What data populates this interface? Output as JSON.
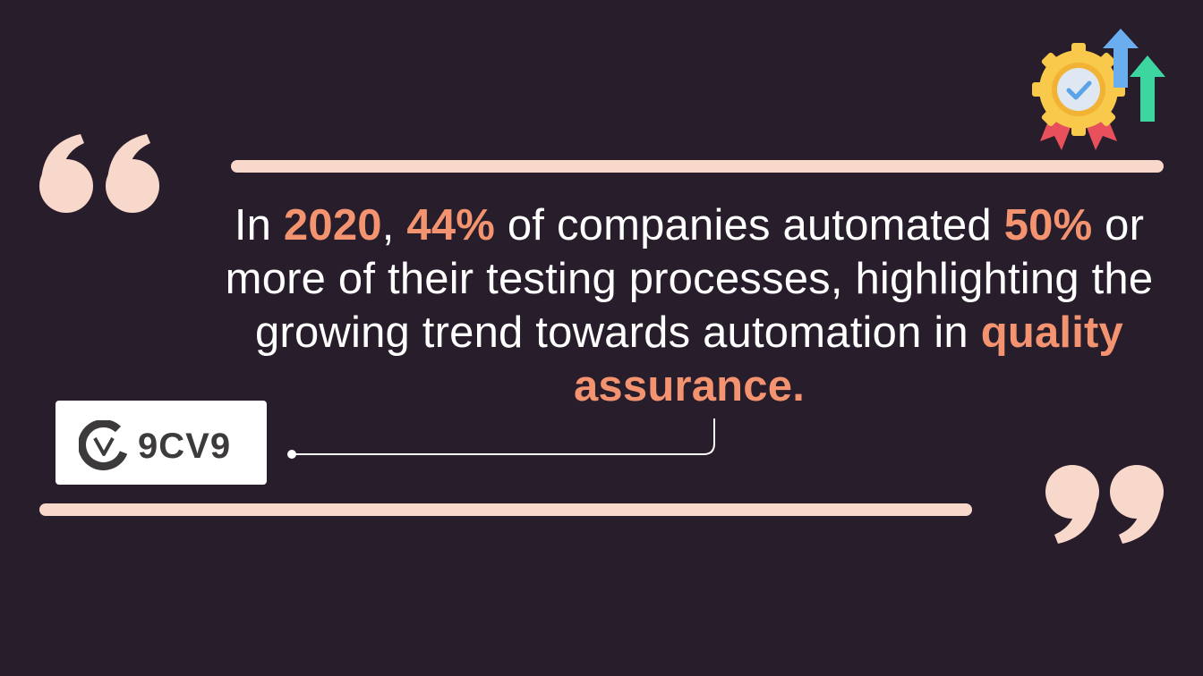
{
  "quote": {
    "part1": "In ",
    "hl_year": "2020",
    "part2": ", ",
    "hl_percent1": "44%",
    "part3": " of companies automated ",
    "hl_percent2": "50%",
    "part4": " or more of their testing processes, highlighting the growing trend towards automation in ",
    "hl_topic": "quality assurance."
  },
  "logo": {
    "mark_letter": "v",
    "text": "9CV9"
  },
  "icons": {
    "open_quote": "opening-quote-mark-icon",
    "close_quote": "closing-quote-mark-icon",
    "badge": "quality-badge-with-growth-arrows-icon"
  },
  "colors": {
    "background": "#281d2b",
    "accent": "#f49370",
    "quote_marks": "#f9d8cc",
    "text": "#ffffff"
  }
}
